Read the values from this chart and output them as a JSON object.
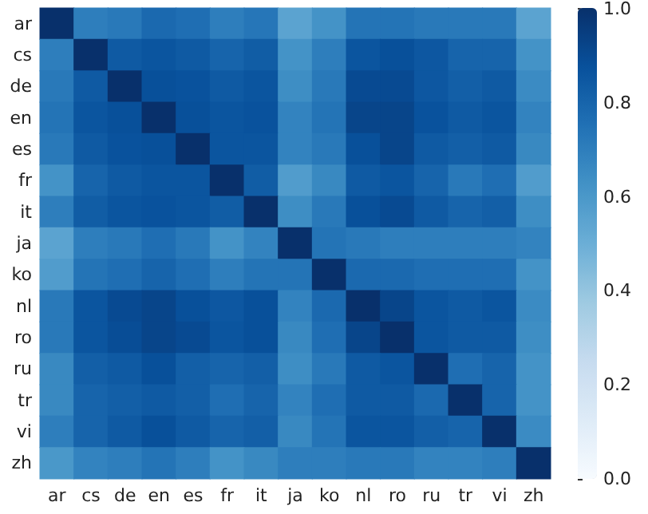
{
  "chart_data": {
    "type": "heatmap",
    "categories": [
      "ar",
      "cs",
      "de",
      "en",
      "es",
      "fr",
      "it",
      "ja",
      "ko",
      "nl",
      "ro",
      "ru",
      "tr",
      "vi",
      "zh"
    ],
    "y_categories": [
      "ar",
      "cs",
      "de",
      "en",
      "es",
      "fr",
      "it",
      "ja",
      "ko",
      "nl",
      "ro",
      "ru",
      "tr",
      "vi",
      "zh"
    ],
    "cells": [
      [
        1,
        0.7,
        0.72,
        0.78,
        0.76,
        0.7,
        0.73,
        0.55,
        0.62,
        0.74,
        0.74,
        0.72,
        0.72,
        0.72,
        0.55
      ],
      [
        0.7,
        1,
        0.84,
        0.86,
        0.84,
        0.8,
        0.83,
        0.62,
        0.7,
        0.86,
        0.88,
        0.85,
        0.8,
        0.8,
        0.62
      ],
      [
        0.72,
        0.84,
        1,
        0.88,
        0.87,
        0.84,
        0.86,
        0.64,
        0.72,
        0.9,
        0.9,
        0.85,
        0.82,
        0.84,
        0.65
      ],
      [
        0.74,
        0.86,
        0.88,
        1,
        0.88,
        0.86,
        0.87,
        0.68,
        0.74,
        0.92,
        0.92,
        0.87,
        0.84,
        0.86,
        0.68
      ],
      [
        0.72,
        0.84,
        0.87,
        0.88,
        1,
        0.86,
        0.86,
        0.68,
        0.72,
        0.88,
        0.92,
        0.84,
        0.82,
        0.84,
        0.66
      ],
      [
        0.62,
        0.8,
        0.84,
        0.86,
        0.86,
        1,
        0.83,
        0.58,
        0.66,
        0.84,
        0.86,
        0.8,
        0.72,
        0.76,
        0.58
      ],
      [
        0.7,
        0.83,
        0.86,
        0.87,
        0.86,
        0.83,
        1,
        0.64,
        0.72,
        0.88,
        0.9,
        0.84,
        0.8,
        0.82,
        0.64
      ],
      [
        0.55,
        0.7,
        0.72,
        0.76,
        0.72,
        0.62,
        0.68,
        1,
        0.74,
        0.72,
        0.7,
        0.7,
        0.7,
        0.7,
        0.68
      ],
      [
        0.58,
        0.74,
        0.76,
        0.8,
        0.76,
        0.7,
        0.74,
        0.74,
        1,
        0.78,
        0.78,
        0.76,
        0.76,
        0.76,
        0.62
      ],
      [
        0.72,
        0.86,
        0.9,
        0.92,
        0.88,
        0.85,
        0.88,
        0.68,
        0.78,
        1,
        0.92,
        0.86,
        0.84,
        0.86,
        0.65
      ],
      [
        0.72,
        0.86,
        0.89,
        0.92,
        0.9,
        0.86,
        0.88,
        0.66,
        0.76,
        0.92,
        1,
        0.86,
        0.84,
        0.84,
        0.64
      ],
      [
        0.66,
        0.82,
        0.84,
        0.88,
        0.82,
        0.8,
        0.82,
        0.64,
        0.72,
        0.84,
        0.86,
        1,
        0.76,
        0.8,
        0.62
      ],
      [
        0.66,
        0.8,
        0.82,
        0.84,
        0.82,
        0.76,
        0.8,
        0.68,
        0.76,
        0.84,
        0.84,
        0.78,
        1,
        0.8,
        0.62
      ],
      [
        0.7,
        0.8,
        0.84,
        0.88,
        0.84,
        0.8,
        0.82,
        0.66,
        0.74,
        0.86,
        0.86,
        0.82,
        0.8,
        1,
        0.65
      ],
      [
        0.6,
        0.68,
        0.7,
        0.74,
        0.7,
        0.62,
        0.66,
        0.7,
        0.7,
        0.72,
        0.72,
        0.68,
        0.68,
        0.7,
        1
      ]
    ],
    "clim": [
      0,
      1
    ],
    "cticks": [
      {
        "value": 0,
        "label": "0.0"
      },
      {
        "value": 0.2,
        "label": "0.2"
      },
      {
        "value": 0.4,
        "label": "0.4"
      },
      {
        "value": 0.6,
        "label": "0.6"
      },
      {
        "value": 0.8,
        "label": "0.8"
      },
      {
        "value": 1,
        "label": "1.0"
      }
    ]
  }
}
